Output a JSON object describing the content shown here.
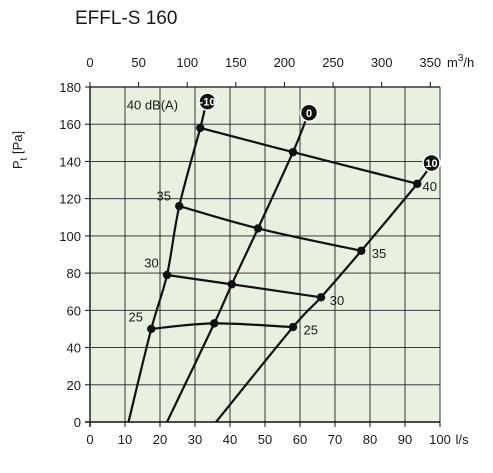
{
  "chart_data": {
    "type": "line",
    "title": "EFFL-S 160",
    "x_bottom": {
      "label": "l/s",
      "range": [
        0,
        100
      ],
      "ticks": [
        0,
        10,
        20,
        30,
        40,
        50,
        60,
        70,
        80,
        90,
        100
      ]
    },
    "x_top": {
      "label": "m³/h",
      "unit_base": "m",
      "unit_sup": "3",
      "unit_tail": "/h",
      "range": [
        0,
        360
      ],
      "ticks": [
        0,
        50,
        100,
        150,
        200,
        250,
        300,
        350
      ]
    },
    "y": {
      "label": "Pt [Pa]",
      "label_main": "P",
      "label_sub": "t",
      "label_unit": " [Pa]",
      "range": [
        0,
        180
      ],
      "ticks": [
        0,
        20,
        40,
        60,
        80,
        100,
        120,
        140,
        160,
        180
      ]
    },
    "grid": true,
    "background": "#e8f0e0",
    "line_color": "#111111",
    "damper_curves": [
      {
        "badge": "-10",
        "points": [
          [
            11,
            0
          ],
          [
            17.5,
            50
          ],
          [
            22,
            79
          ],
          [
            25.5,
            116
          ],
          [
            31.5,
            158
          ],
          [
            33,
            170
          ]
        ]
      },
      {
        "badge": "0",
        "points": [
          [
            22,
            0
          ],
          [
            35.5,
            53
          ],
          [
            40.5,
            74
          ],
          [
            48,
            104
          ],
          [
            58,
            145
          ],
          [
            62,
            164
          ]
        ]
      },
      {
        "badge": "10",
        "points": [
          [
            36,
            0
          ],
          [
            58,
            51
          ],
          [
            66,
            67
          ],
          [
            77.5,
            92
          ],
          [
            93.5,
            128
          ],
          [
            97,
            137
          ]
        ]
      }
    ],
    "sound_curves": [
      {
        "label": "40 dB(A)",
        "points": [
          [
            31.5,
            158
          ],
          [
            58,
            145
          ],
          [
            93.5,
            128
          ]
        ]
      },
      {
        "label": "35",
        "points": [
          [
            25.5,
            116
          ],
          [
            48,
            104
          ],
          [
            77.5,
            92
          ]
        ]
      },
      {
        "label": "30",
        "points": [
          [
            22,
            79
          ],
          [
            40.5,
            74
          ],
          [
            66,
            67
          ]
        ]
      },
      {
        "label": "25",
        "points": [
          [
            17.5,
            50
          ],
          [
            35.5,
            53
          ],
          [
            58,
            51
          ]
        ]
      }
    ],
    "annotations": [
      {
        "text": "40 dB(A)",
        "x": 10.5,
        "y": 168
      },
      {
        "text": "40",
        "x": 95,
        "y": 124
      },
      {
        "text": "35",
        "x": 19,
        "y": 119
      },
      {
        "text": "35",
        "x": 80.5,
        "y": 88
      },
      {
        "text": "30",
        "x": 15.5,
        "y": 83
      },
      {
        "text": "30",
        "x": 68.5,
        "y": 63
      },
      {
        "text": "25",
        "x": 11,
        "y": 54
      },
      {
        "text": "25",
        "x": 61,
        "y": 47
      }
    ]
  }
}
